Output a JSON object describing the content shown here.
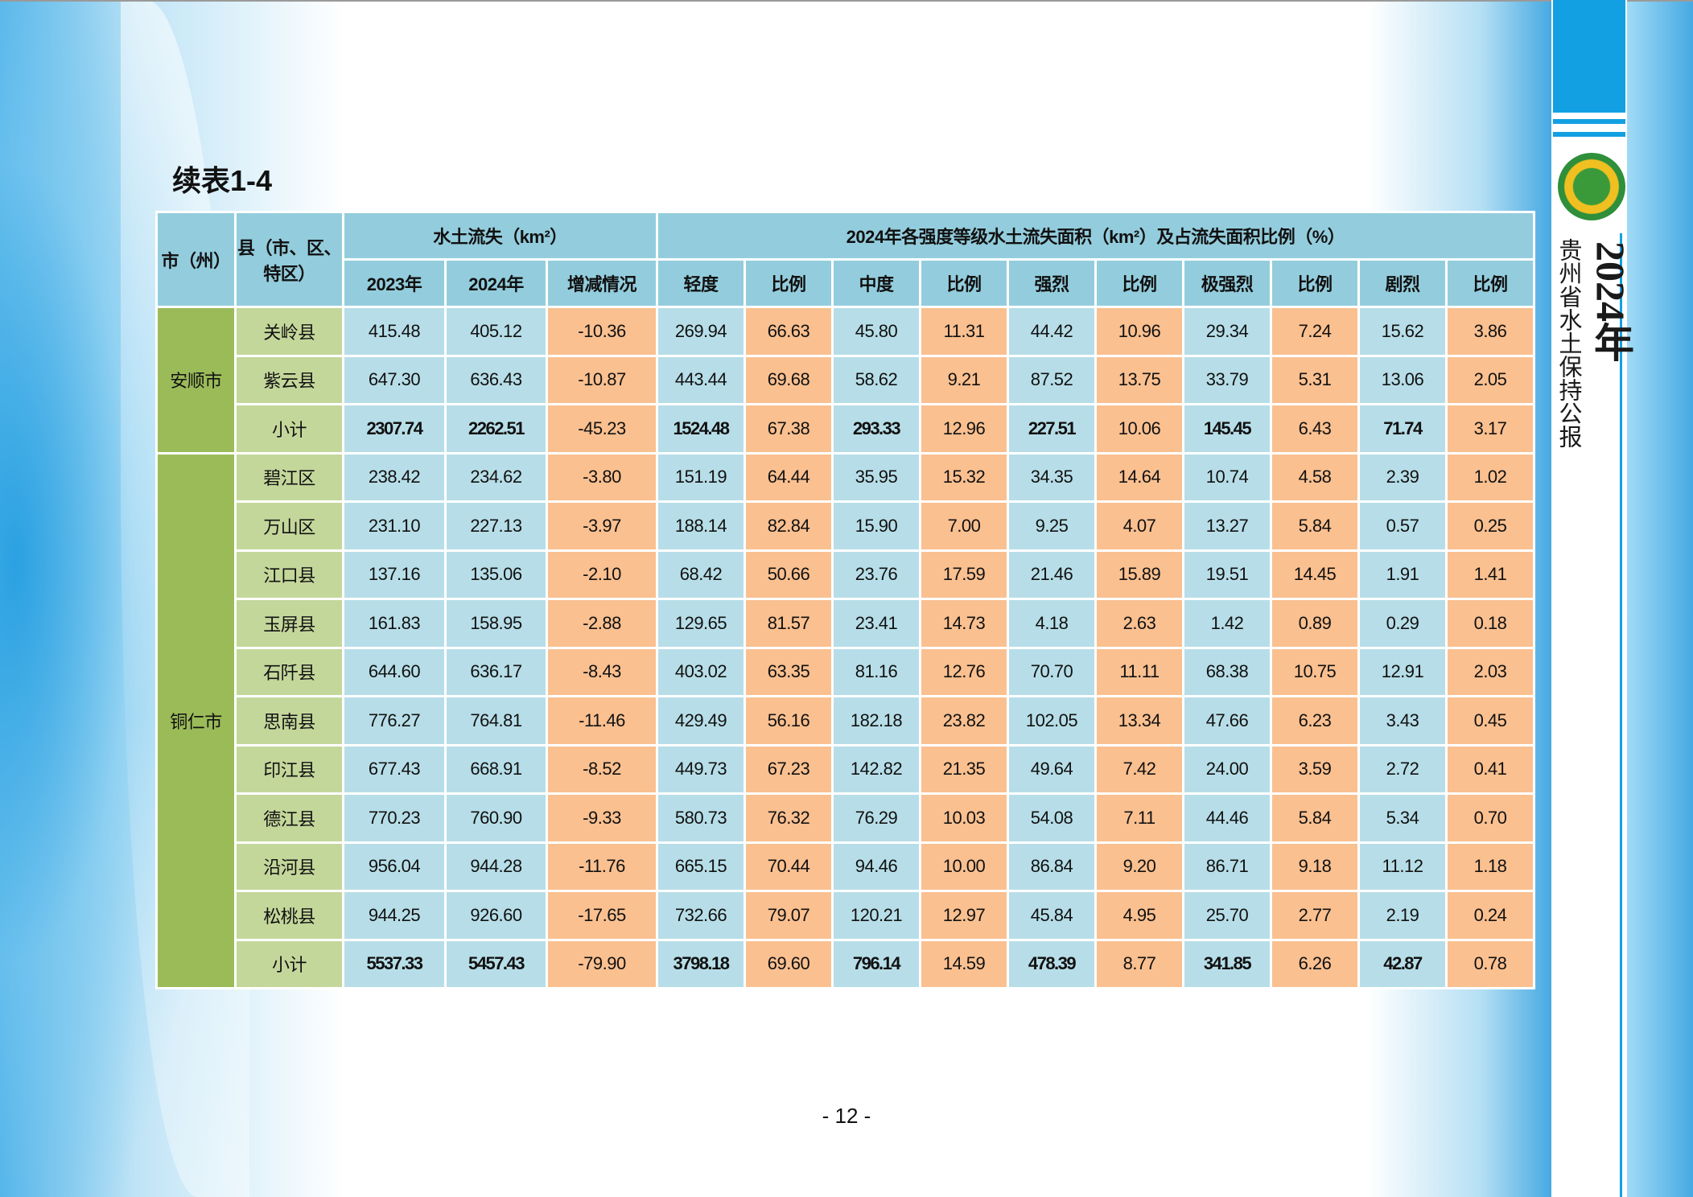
{
  "header": {
    "title": "续表1-4"
  },
  "sidebar": {
    "year": "2024年",
    "name": "贵州省水土保持公报"
  },
  "table": {
    "head": {
      "city": "市（州）",
      "county": "县（市、区、特区）",
      "loss": "水土流失（km²）",
      "grades": "2024年各强度等级水土流失面积（km²）及占流失面积比例（%）",
      "columns": [
        "2023年",
        "2024年",
        "增减情况",
        "轻度",
        "比例",
        "中度",
        "比例",
        "强烈",
        "比例",
        "极强烈",
        "比例",
        "剧烈",
        "比例"
      ]
    },
    "groups": [
      {
        "city": "安顺市",
        "rows": [
          {
            "name": "关岭县",
            "values": [
              "415.48",
              "405.12",
              "-10.36",
              "269.94",
              "66.63",
              "45.80",
              "11.31",
              "44.42",
              "10.96",
              "29.34",
              "7.24",
              "15.62",
              "3.86"
            ]
          },
          {
            "name": "紫云县",
            "values": [
              "647.30",
              "636.43",
              "-10.87",
              "443.44",
              "69.68",
              "58.62",
              "9.21",
              "87.52",
              "13.75",
              "33.79",
              "5.31",
              "13.06",
              "2.05"
            ]
          },
          {
            "name": "小计",
            "values": [
              "2307.74",
              "2262.51",
              "-45.23",
              "1524.48",
              "67.38",
              "293.33",
              "12.96",
              "227.51",
              "10.06",
              "145.45",
              "6.43",
              "71.74",
              "3.17"
            ]
          }
        ]
      },
      {
        "city": "铜仁市",
        "rows": [
          {
            "name": "碧江区",
            "values": [
              "238.42",
              "234.62",
              "-3.80",
              "151.19",
              "64.44",
              "35.95",
              "15.32",
              "34.35",
              "14.64",
              "10.74",
              "4.58",
              "2.39",
              "1.02"
            ]
          },
          {
            "name": "万山区",
            "values": [
              "231.10",
              "227.13",
              "-3.97",
              "188.14",
              "82.84",
              "15.90",
              "7.00",
              "9.25",
              "4.07",
              "13.27",
              "5.84",
              "0.57",
              "0.25"
            ]
          },
          {
            "name": "江口县",
            "values": [
              "137.16",
              "135.06",
              "-2.10",
              "68.42",
              "50.66",
              "23.76",
              "17.59",
              "21.46",
              "15.89",
              "19.51",
              "14.45",
              "1.91",
              "1.41"
            ]
          },
          {
            "name": "玉屏县",
            "values": [
              "161.83",
              "158.95",
              "-2.88",
              "129.65",
              "81.57",
              "23.41",
              "14.73",
              "4.18",
              "2.63",
              "1.42",
              "0.89",
              "0.29",
              "0.18"
            ]
          },
          {
            "name": "石阡县",
            "values": [
              "644.60",
              "636.17",
              "-8.43",
              "403.02",
              "63.35",
              "81.16",
              "12.76",
              "70.70",
              "11.11",
              "68.38",
              "10.75",
              "12.91",
              "2.03"
            ]
          },
          {
            "name": "思南县",
            "values": [
              "776.27",
              "764.81",
              "-11.46",
              "429.49",
              "56.16",
              "182.18",
              "23.82",
              "102.05",
              "13.34",
              "47.66",
              "6.23",
              "3.43",
              "0.45"
            ]
          },
          {
            "name": "印江县",
            "values": [
              "677.43",
              "668.91",
              "-8.52",
              "449.73",
              "67.23",
              "142.82",
              "21.35",
              "49.64",
              "7.42",
              "24.00",
              "3.59",
              "2.72",
              "0.41"
            ]
          },
          {
            "name": "德江县",
            "values": [
              "770.23",
              "760.90",
              "-9.33",
              "580.73",
              "76.32",
              "76.29",
              "10.03",
              "54.08",
              "7.11",
              "44.46",
              "5.84",
              "5.34",
              "0.70"
            ]
          },
          {
            "name": "沿河县",
            "values": [
              "956.04",
              "944.28",
              "-11.76",
              "665.15",
              "70.44",
              "94.46",
              "10.00",
              "86.84",
              "9.20",
              "86.71",
              "9.18",
              "11.12",
              "1.18"
            ]
          },
          {
            "name": "松桃县",
            "values": [
              "944.25",
              "926.60",
              "-17.65",
              "732.66",
              "79.07",
              "120.21",
              "12.97",
              "45.84",
              "4.95",
              "25.70",
              "2.77",
              "2.19",
              "0.24"
            ]
          },
          {
            "name": "小计",
            "values": [
              "5537.33",
              "5457.43",
              "-79.90",
              "3798.18",
              "69.60",
              "796.14",
              "14.59",
              "478.39",
              "8.77",
              "341.85",
              "6.26",
              "42.87",
              "0.78"
            ]
          }
        ]
      }
    ]
  },
  "footer": {
    "page": "- 12 -"
  }
}
